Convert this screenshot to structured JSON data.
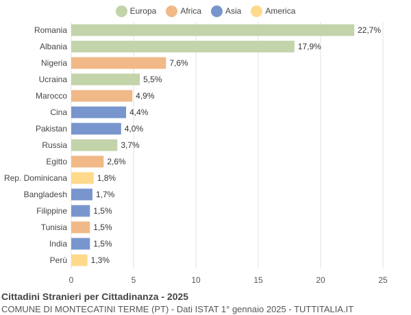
{
  "legend": [
    {
      "label": "Europa",
      "color": "#c3d3aa"
    },
    {
      "label": "Africa",
      "color": "#f0b987"
    },
    {
      "label": "Asia",
      "color": "#7896cd"
    },
    {
      "label": "America",
      "color": "#fed98a"
    }
  ],
  "chart_data": {
    "type": "bar",
    "orientation": "horizontal",
    "title": "Cittadini Stranieri per Cittadinanza - 2025",
    "subtitle": "COMUNE DI MONTECATINI TERME (PT) - Dati ISTAT 1° gennaio 2025 - TUTTITALIA.IT",
    "categories": [
      "Romania",
      "Albania",
      "Nigeria",
      "Ucraina",
      "Marocco",
      "Cina",
      "Pakistan",
      "Russia",
      "Egitto",
      "Rep. Dominicana",
      "Bangladesh",
      "Filippine",
      "Tunisia",
      "India",
      "Perù"
    ],
    "values": [
      22.7,
      17.9,
      7.6,
      5.5,
      4.9,
      4.4,
      4.0,
      3.7,
      2.6,
      1.8,
      1.7,
      1.5,
      1.5,
      1.5,
      1.3
    ],
    "value_labels": [
      "22,7%",
      "17,9%",
      "7,6%",
      "5,5%",
      "4,9%",
      "4,4%",
      "4,0%",
      "3,7%",
      "2,6%",
      "1,8%",
      "1,7%",
      "1,5%",
      "1,5%",
      "1,5%",
      "1,3%"
    ],
    "groups": [
      "Europa",
      "Europa",
      "Africa",
      "Europa",
      "Africa",
      "Asia",
      "Asia",
      "Europa",
      "Africa",
      "America",
      "Asia",
      "Asia",
      "Africa",
      "Asia",
      "America"
    ],
    "xlim": [
      0,
      25
    ],
    "xticks": [
      0,
      5,
      10,
      15,
      20,
      25
    ],
    "grid": true,
    "legend_position": "top-center"
  }
}
